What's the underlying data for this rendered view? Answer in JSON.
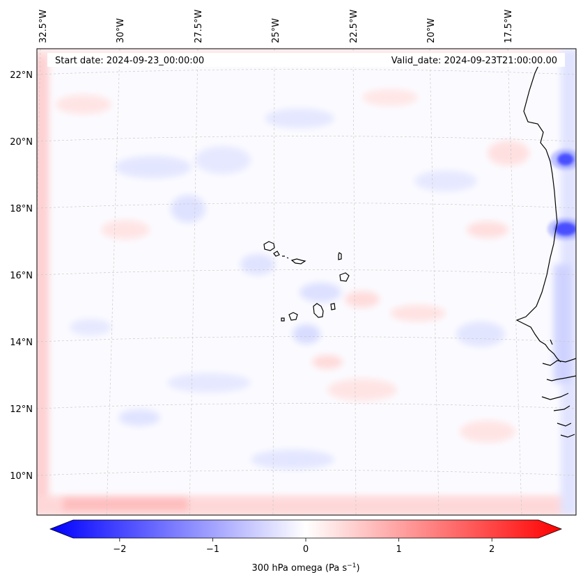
{
  "header": {
    "start_date": "Start date: 2024-09-23_00:00:00",
    "valid_date": "Valid_date: 2024-09-23T21:00:00.00"
  },
  "axes": {
    "lon_labels": [
      "32.5°W",
      "30°W",
      "27.5°W",
      "25°W",
      "22.5°W",
      "20°W",
      "17.5°W"
    ],
    "lat_labels": [
      "22°N",
      "20°N",
      "18°N",
      "16°N",
      "14°N",
      "12°N",
      "10°N"
    ]
  },
  "colorbar": {
    "label": "300 hPa omega (Pa s",
    "label_superscript": "−1",
    "label_close": ")",
    "ticks": [
      "−2",
      "−1",
      "0",
      "1",
      "2"
    ],
    "tick_values": [
      -2,
      -1,
      0,
      1,
      2
    ],
    "range": [
      -2.5,
      2.5
    ],
    "colors": {
      "negative": "#0000ff",
      "zero": "#ffffff",
      "positive": "#ff0000"
    }
  }
}
